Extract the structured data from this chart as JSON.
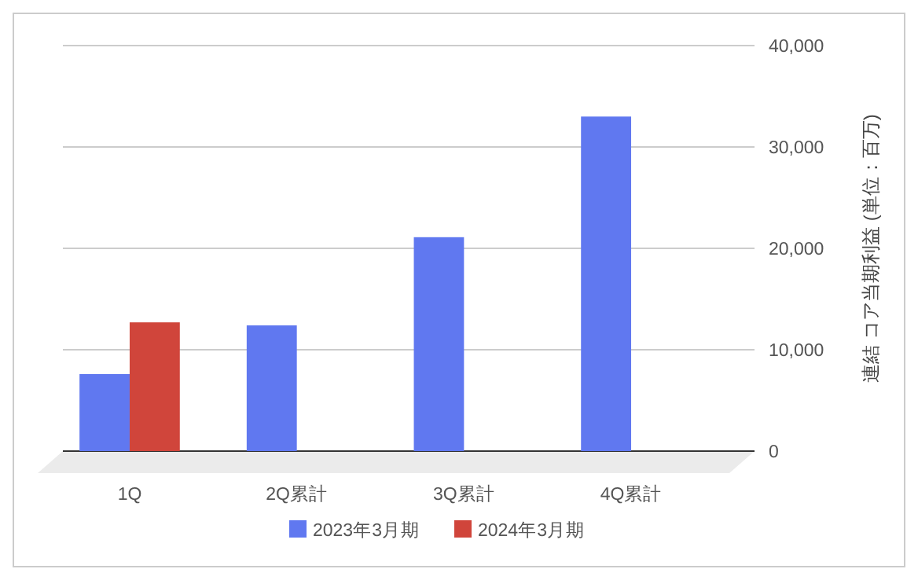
{
  "chart_data": {
    "type": "bar",
    "categories": [
      "1Q",
      "2Q累計",
      "3Q累計",
      "4Q累計"
    ],
    "series": [
      {
        "name": "2023年3月期",
        "color": "#6078f0",
        "values": [
          7600,
          12400,
          21100,
          33000
        ]
      },
      {
        "name": "2024年3月期",
        "color": "#d0453b",
        "values": [
          12700,
          null,
          null,
          null
        ]
      }
    ],
    "ylabel": "連結 コア当期利益 (単位：百万)",
    "ylim": [
      0,
      40000
    ],
    "yticks": [
      {
        "value": 0,
        "label": "0"
      },
      {
        "value": 10000,
        "label": "10,000"
      },
      {
        "value": 20000,
        "label": "20,000"
      },
      {
        "value": 30000,
        "label": "30,000"
      },
      {
        "value": 40000,
        "label": "40,000"
      }
    ],
    "grid": true,
    "legend": "bottom"
  }
}
